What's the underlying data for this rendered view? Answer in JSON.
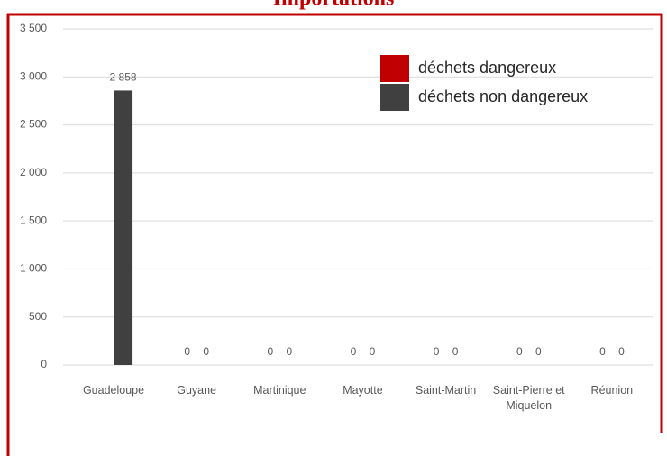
{
  "chart_data": {
    "type": "bar",
    "title": "Importations",
    "categories": [
      "Guadeloupe",
      "Guyane",
      "Martinique",
      "Mayotte",
      "Saint-Martin",
      "Saint-Pierre et Miquelon",
      "Réunion"
    ],
    "series": [
      {
        "name": "déchets dangereux",
        "color": "#c00000",
        "values": [
          null,
          0,
          0,
          0,
          0,
          0,
          0
        ]
      },
      {
        "name": "déchets non dangereux",
        "color": "#404040",
        "values": [
          2858,
          0,
          0,
          0,
          0,
          0,
          0
        ],
        "value_labels": [
          "2 858",
          "0",
          "0",
          "0",
          "0",
          "0",
          "0"
        ]
      }
    ],
    "ylim": [
      0,
      3500
    ],
    "yticks": [
      0,
      500,
      {
        "value": 1000,
        "label": "1 000"
      },
      {
        "value": 1500,
        "label": "1 500"
      },
      {
        "value": 2000,
        "label": "2 000"
      },
      {
        "value": 2500,
        "label": "2 500"
      },
      {
        "value": 3000,
        "label": "3 000"
      },
      {
        "value": 3500,
        "label": "3 500"
      }
    ],
    "grid": true,
    "legend": "top-right"
  }
}
